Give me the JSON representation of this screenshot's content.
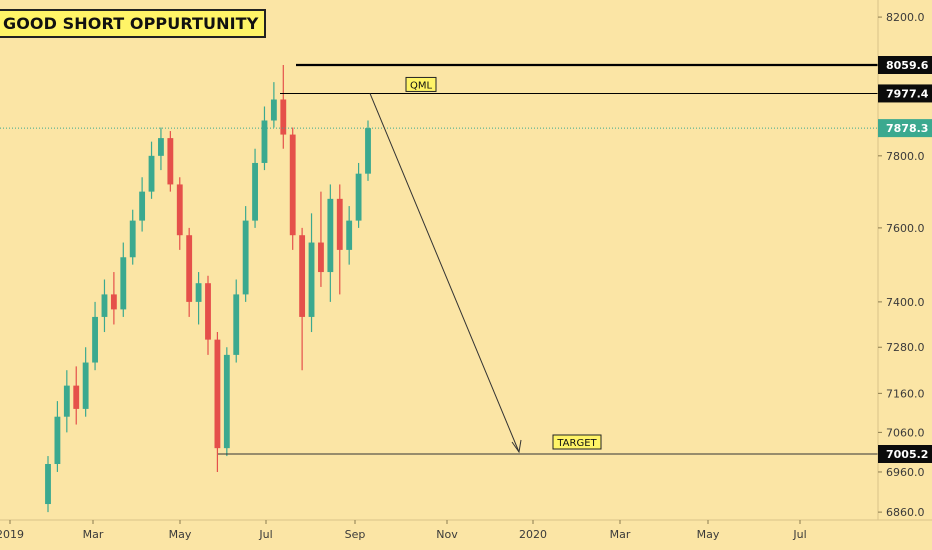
{
  "title": "GOOD SHORT OPPURTUNITY",
  "colors": {
    "background": "#FBE5A5",
    "up": "#3BA98F",
    "down": "#E5504A",
    "label_bg": "#FFF467",
    "price_badge_dark": "#0B0B0B",
    "price_badge_current": "#3BA98F"
  },
  "chart_data": {
    "type": "candlestick",
    "y_scale": "log",
    "y_ticks": [
      "8200.0",
      "7800.0",
      "7600.0",
      "7400.0",
      "7280.0",
      "7160.0",
      "7060.0",
      "6960.0",
      "6860.0"
    ],
    "x_ticks": [
      "2019",
      "Mar",
      "May",
      "Jul",
      "Sep",
      "Nov",
      "2020",
      "Mar",
      "May",
      "Jul"
    ],
    "price_levels": [
      {
        "label": "8059.6",
        "value": 8059.6,
        "style": "dark"
      },
      {
        "label": "7977.4",
        "value": 7977.4,
        "style": "dark"
      },
      {
        "label": "7878.3",
        "value": 7878.3,
        "style": "current"
      },
      {
        "label": "7005.2",
        "value": 7005.2,
        "style": "dark"
      }
    ],
    "annotations": [
      {
        "label": "QML",
        "type": "horizontal_line",
        "value": 7977.4
      },
      {
        "label": "TARGET",
        "type": "horizontal_line",
        "value": 7005.2
      }
    ],
    "series": [
      {
        "date": "2019-01",
        "open": 6880,
        "close": 6980,
        "high": 7000,
        "low": 6860
      },
      {
        "date": "2019-01",
        "open": 6980,
        "close": 7100,
        "high": 7140,
        "low": 6960
      },
      {
        "date": "2019-01",
        "open": 7100,
        "close": 7180,
        "high": 7220,
        "low": 7060
      },
      {
        "date": "2019-02",
        "open": 7180,
        "close": 7120,
        "high": 7230,
        "low": 7080
      },
      {
        "date": "2019-02",
        "open": 7120,
        "close": 7240,
        "high": 7280,
        "low": 7100
      },
      {
        "date": "2019-02",
        "open": 7240,
        "close": 7360,
        "high": 7400,
        "low": 7220
      },
      {
        "date": "2019-03",
        "open": 7360,
        "close": 7420,
        "high": 7460,
        "low": 7320
      },
      {
        "date": "2019-03",
        "open": 7420,
        "close": 7380,
        "high": 7480,
        "low": 7340
      },
      {
        "date": "2019-03",
        "open": 7380,
        "close": 7520,
        "high": 7560,
        "low": 7360
      },
      {
        "date": "2019-04",
        "open": 7520,
        "close": 7620,
        "high": 7650,
        "low": 7500
      },
      {
        "date": "2019-04",
        "open": 7620,
        "close": 7700,
        "high": 7740,
        "low": 7590
      },
      {
        "date": "2019-04",
        "open": 7700,
        "close": 7800,
        "high": 7840,
        "low": 7680
      },
      {
        "date": "2019-05",
        "open": 7800,
        "close": 7850,
        "high": 7880,
        "low": 7760
      },
      {
        "date": "2019-05",
        "open": 7850,
        "close": 7720,
        "high": 7870,
        "low": 7700
      },
      {
        "date": "2019-05",
        "open": 7720,
        "close": 7580,
        "high": 7740,
        "low": 7540
      },
      {
        "date": "2019-05",
        "open": 7580,
        "close": 7400,
        "high": 7600,
        "low": 7360
      },
      {
        "date": "2019-06",
        "open": 7400,
        "close": 7450,
        "high": 7480,
        "low": 7340
      },
      {
        "date": "2019-06",
        "open": 7450,
        "close": 7300,
        "high": 7470,
        "low": 7260
      },
      {
        "date": "2019-06",
        "open": 7300,
        "close": 7020,
        "high": 7320,
        "low": 6960
      },
      {
        "date": "2019-06",
        "open": 7020,
        "close": 7260,
        "high": 7280,
        "low": 7000
      },
      {
        "date": "2019-06",
        "open": 7260,
        "close": 7420,
        "high": 7460,
        "low": 7240
      },
      {
        "date": "2019-07",
        "open": 7420,
        "close": 7620,
        "high": 7660,
        "low": 7400
      },
      {
        "date": "2019-07",
        "open": 7620,
        "close": 7780,
        "high": 7820,
        "low": 7600
      },
      {
        "date": "2019-07",
        "open": 7780,
        "close": 7900,
        "high": 7940,
        "low": 7760
      },
      {
        "date": "2019-07",
        "open": 7900,
        "close": 7960,
        "high": 8010,
        "low": 7880
      },
      {
        "date": "2019-08",
        "open": 7960,
        "close": 7860,
        "high": 8059.6,
        "low": 7820
      },
      {
        "date": "2019-08",
        "open": 7860,
        "close": 7580,
        "high": 7880,
        "low": 7540
      },
      {
        "date": "2019-08",
        "open": 7580,
        "close": 7360,
        "high": 7600,
        "low": 7220
      },
      {
        "date": "2019-08",
        "open": 7360,
        "close": 7560,
        "high": 7640,
        "low": 7320
      },
      {
        "date": "2019-08",
        "open": 7560,
        "close": 7480,
        "high": 7700,
        "low": 7440
      },
      {
        "date": "2019-08",
        "open": 7480,
        "close": 7680,
        "high": 7720,
        "low": 7400
      },
      {
        "date": "2019-08",
        "open": 7680,
        "close": 7540,
        "high": 7720,
        "low": 7420
      },
      {
        "date": "2019-09",
        "open": 7540,
        "close": 7620,
        "high": 7660,
        "low": 7500
      },
      {
        "date": "2019-09",
        "open": 7620,
        "close": 7750,
        "high": 7780,
        "low": 7600
      },
      {
        "date": "2019-09",
        "open": 7750,
        "close": 7878.3,
        "high": 7900,
        "low": 7730
      }
    ]
  }
}
